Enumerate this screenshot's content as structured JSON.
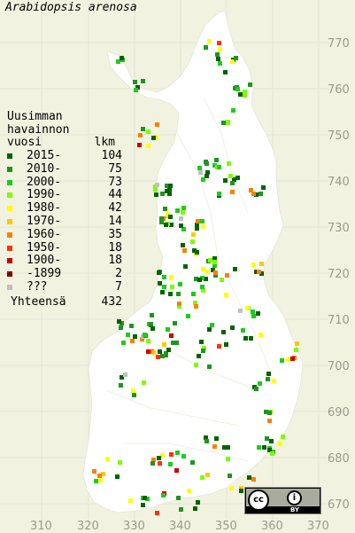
{
  "title": "Arabidopsis arenosa",
  "legend": {
    "header": [
      "Uusimman",
      "havainnon",
      "vuosi"
    ],
    "count_header": "lkm",
    "items": [
      {
        "label": "2015-",
        "count": "104",
        "color": "#006400"
      },
      {
        "label": "2010-",
        "count": "75",
        "color": "#1e961e"
      },
      {
        "label": "2000-",
        "count": "73",
        "color": "#1ecb1e"
      },
      {
        "label": "1990-",
        "count": "44",
        "color": "#7cfc00"
      },
      {
        "label": "1980-",
        "count": "42",
        "color": "#ffff00"
      },
      {
        "label": "1970-",
        "count": "14",
        "color": "#ffc800"
      },
      {
        "label": "1960-",
        "count": "35",
        "color": "#ff7f00"
      },
      {
        "label": "1950-",
        "count": "18",
        "color": "#ff3200"
      },
      {
        "label": "1900-",
        "count": "18",
        "color": "#cd0000"
      },
      {
        "label": "-1899",
        "count": "2",
        "color": "#8b0000"
      },
      {
        "label": "???",
        "count": "7",
        "color": "#c0c0c0"
      }
    ],
    "total_label": "Yhteensä",
    "total_count": "432"
  },
  "axes": {
    "x_ticks": [
      "310",
      "320",
      "330",
      "340",
      "350",
      "360",
      "370"
    ],
    "y_ticks": [
      "770",
      "760",
      "750",
      "740",
      "730",
      "720",
      "710",
      "700",
      "690",
      "680",
      "670"
    ]
  },
  "license": {
    "cc": "cc",
    "by": "BY"
  }
}
